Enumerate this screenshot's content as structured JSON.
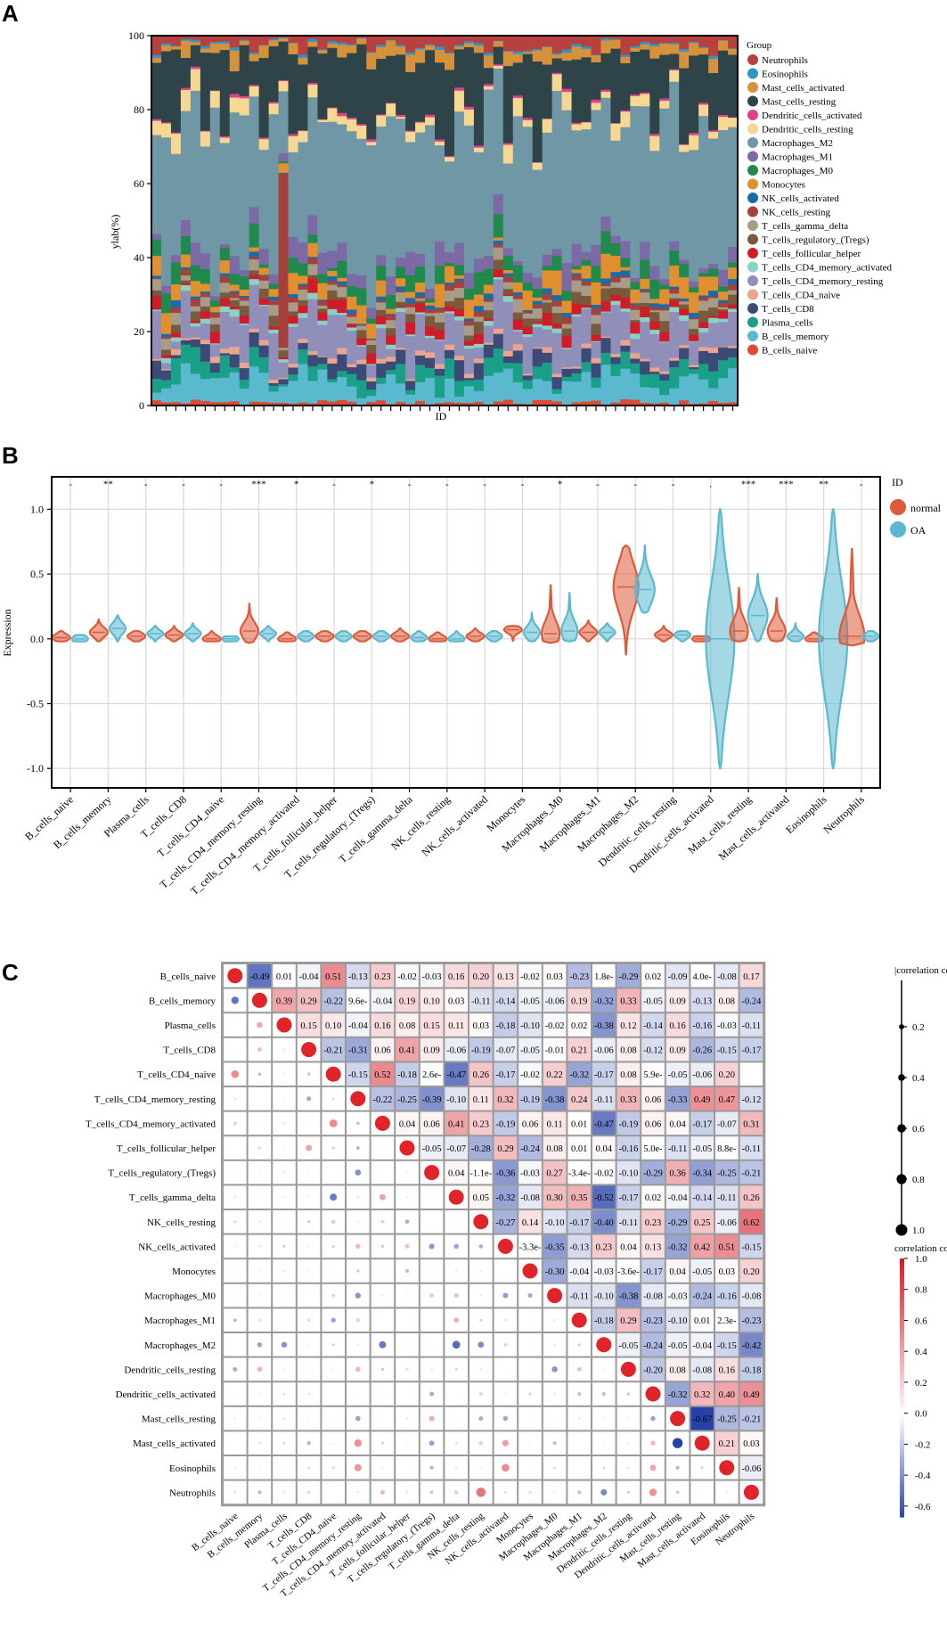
{
  "panel_labels": [
    "A",
    "B",
    "C"
  ],
  "colors": {
    "Neutrophils": "#b8403e",
    "Eosinophils": "#2a97c9",
    "Mast_cells_activated": "#d5923a",
    "Mast_cells_resting": "#2f4448",
    "Dendritic_cells_activated": "#e0408a",
    "Dendritic_cells_resting": "#f6d892",
    "Macrophages_M2": "#6f97a6",
    "Macrophages_M1": "#7c6aa6",
    "Macrophages_M0": "#1f8a4c",
    "Monocytes": "#e0902e",
    "NK_cells_activated": "#1c6aa8",
    "NK_cells_resting": "#a6403a",
    "T_cells_gamma_delta": "#a89b88",
    "T_cells_regulatory_(Tregs)": "#7a5a3c",
    "T_cells_follicular_helper": "#d01c28",
    "T_cells_CD4_memory_activated": "#88d2c8",
    "T_cells_CD4_memory_resting": "#8f8fba",
    "T_cells_CD4_naive": "#eda48c",
    "T_cells_CD8": "#3c4a78",
    "Plasma_cells": "#1aa088",
    "B_cells_memory": "#5ab8cf",
    "B_cells_naive": "#de4a32",
    "normal": "#dd5a3a",
    "OA": "#5ab8d0"
  },
  "chart_data": [
    {
      "type": "bar",
      "subtype": "stacked-percent",
      "title": "",
      "xlabel": "ID",
      "ylabel": "ylab(%)",
      "ylim": [
        0,
        100
      ],
      "yticks": [
        "0",
        "20",
        "40",
        "60",
        "80",
        "100"
      ],
      "legend_title": "Group",
      "legend": [
        "Neutrophils",
        "Eosinophils",
        "Mast_cells_activated",
        "Mast_cells_resting",
        "Dendritic_cells_activated",
        "Dendritic_cells_resting",
        "Macrophages_M2",
        "Macrophages_M1",
        "Macrophages_M0",
        "Monocytes",
        "NK_cells_activated",
        "NK_cells_resting",
        "T_cells_gamma_delta",
        "T_cells_regulatory_(Tregs)",
        "T_cells_follicular_helper",
        "T_cells_CD4_memory_activated",
        "T_cells_CD4_memory_resting",
        "T_cells_CD4_naive",
        "T_cells_CD8",
        "Plasma_cells",
        "B_cells_memory",
        "B_cells_naive"
      ],
      "n_samples": 60,
      "typical_composition_percent": {
        "B_cells_naive": 1,
        "B_cells_memory": 6,
        "Plasma_cells": 4,
        "T_cells_CD8": 3,
        "T_cells_CD4_naive": 1,
        "T_cells_CD4_memory_resting": 8,
        "T_cells_CD4_memory_activated": 1,
        "T_cells_follicular_helper": 2,
        "T_cells_regulatory_(Tregs)": 2,
        "T_cells_gamma_delta": 2,
        "NK_cells_resting": 1,
        "NK_cells_activated": 1,
        "Monocytes": 4,
        "Macrophages_M0": 4,
        "Macrophages_M1": 4,
        "Macrophages_M2": 40,
        "Dendritic_cells_resting": 3,
        "Dendritic_cells_activated": 0.5,
        "Mast_cells_resting": 15,
        "Mast_cells_activated": 3,
        "Eosinophils": 0.5,
        "Neutrophils": 3
      }
    },
    {
      "type": "violin",
      "title": "",
      "xlabel": "",
      "ylabel": "Expression",
      "ylim": [
        -1.15,
        1.25
      ],
      "yticks": [
        "-1.0",
        "-0.5",
        "0.0",
        "0.5",
        "1.0"
      ],
      "legend_title": "ID",
      "legend": [
        "normal",
        "OA"
      ],
      "categories": [
        "B_cells_naive",
        "B_cells_memory",
        "Plasma_cells",
        "T_cells_CD8",
        "T_cells_CD4_naive",
        "T_cells_CD4_memory_resting",
        "T_cells_CD4_memory_activated",
        "T_cells_follicular_helper",
        "T_cells_regulatory_(Tregs)",
        "T_cells_gamma_delta",
        "NK_cells_resting",
        "NK_cells_activated",
        "Monocytes",
        "Macrophages_M0",
        "Macrophages_M1",
        "Macrophages_M2",
        "Dendritic_cells_resting",
        "Dendritic_cells_activated",
        "Mast_cells_resting",
        "Mast_cells_activated",
        "Eosinophils",
        "Neutrophils"
      ],
      "significance": [
        "-",
        "**",
        "-",
        "-",
        "-",
        "***",
        "*",
        "-",
        "*",
        "-",
        "-",
        "-",
        "-",
        "*",
        "-",
        "-",
        "-",
        ".",
        "***",
        "***",
        "**",
        "-"
      ],
      "series": [
        {
          "name": "normal",
          "median": [
            0.01,
            0.05,
            0.02,
            0.03,
            0.0,
            0.06,
            0.0,
            0.02,
            0.02,
            0.02,
            0.0,
            0.02,
            0.07,
            0.04,
            0.05,
            0.4,
            0.03,
            0.0,
            0.06,
            0.06,
            0.0,
            0.02
          ],
          "min": [
            -0.02,
            -0.02,
            -0.02,
            -0.02,
            -0.02,
            -0.03,
            -0.02,
            -0.02,
            -0.02,
            -0.02,
            -0.02,
            -0.02,
            -0.02,
            -0.03,
            -0.02,
            -0.12,
            -0.02,
            -0.02,
            -0.02,
            -0.02,
            -0.02,
            -0.05
          ],
          "max": [
            0.06,
            0.15,
            0.06,
            0.1,
            0.06,
            0.27,
            0.05,
            0.06,
            0.06,
            0.08,
            0.05,
            0.08,
            0.1,
            0.42,
            0.14,
            0.72,
            0.1,
            0.02,
            0.4,
            0.32,
            0.05,
            0.7
          ]
        },
        {
          "name": "OA",
          "median": [
            0.0,
            0.08,
            0.04,
            0.04,
            0.0,
            0.04,
            0.02,
            0.02,
            0.02,
            0.01,
            0.0,
            0.02,
            0.05,
            0.06,
            0.05,
            0.38,
            0.03,
            0.0,
            0.18,
            0.02,
            0.0,
            0.02
          ],
          "min": [
            -0.02,
            -0.02,
            -0.02,
            -0.02,
            -0.02,
            -0.02,
            -0.02,
            -0.02,
            -0.02,
            -0.02,
            -0.02,
            -0.02,
            -0.02,
            -0.02,
            -0.02,
            0.2,
            -0.02,
            -1.0,
            -0.02,
            -0.02,
            -1.0,
            -0.02
          ],
          "max": [
            0.03,
            0.18,
            0.1,
            0.12,
            0.02,
            0.1,
            0.06,
            0.06,
            0.06,
            0.06,
            0.06,
            0.06,
            0.2,
            0.36,
            0.12,
            0.72,
            0.06,
            1.0,
            0.5,
            0.12,
            1.0,
            0.06
          ]
        }
      ]
    },
    {
      "type": "heatmap",
      "subtype": "correlation-matrix",
      "labels": [
        "B_cells_naive",
        "B_cells_memory",
        "Plasma_cells",
        "T_cells_CD8",
        "T_cells_CD4_naive",
        "T_cells_CD4_memory_resting",
        "T_cells_CD4_memory_activated",
        "T_cells_follicular_helper",
        "T_cells_regulatory_(Tregs)",
        "T_cells_gamma_delta",
        "NK_cells_resting",
        "NK_cells_activated",
        "Monocytes",
        "Macrophages_M0",
        "Macrophages_M1",
        "Macrophages_M2",
        "Dendritic_cells_resting",
        "Dendritic_cells_activated",
        "Mast_cells_resting",
        "Mast_cells_activated",
        "Eosinophils",
        "Neutrophils"
      ],
      "upper_rows": [
        [
          "-0.49",
          "0.01",
          "-0.04",
          "0.51",
          "-0.13",
          "0.23",
          "-0.02",
          "-0.03",
          "0.16",
          "0.20",
          "0.13",
          "-0.02",
          "0.03",
          "-0.23",
          "1.8e-",
          "-0.29",
          "0.02",
          "-0.09",
          "4.0e-",
          "-0.08",
          "0.17"
        ],
        [
          "0.39",
          "0.29",
          "-0.22",
          "9.6e-",
          "-0.04",
          "0.19",
          "0.10",
          "0.03",
          "-0.11",
          "-0.14",
          "-0.05",
          "-0.06",
          "0.19",
          "-0.32",
          "0.33",
          "-0.05",
          "0.09",
          "-0.13",
          "0.08",
          "-0.24"
        ],
        [
          "0.15",
          "0.10",
          "-0.04",
          "0.16",
          "0.08",
          "0.15",
          "0.11",
          "0.03",
          "-0.18",
          "-0.10",
          "-0.02",
          "0.02",
          "-0.38",
          "0.12",
          "-0.14",
          "0.16",
          "-0.16",
          "-0.03",
          "-0.11"
        ],
        [
          "-0.21",
          "-0.31",
          "0.06",
          "0.41",
          "0.09",
          "-0.06",
          "-0.19",
          "-0.07",
          "-0.05",
          "-0.01",
          "0.21",
          "-0.06",
          "0.08",
          "-0.12",
          "0.09",
          "-0.26",
          "-0.15",
          "-0.17"
        ],
        [
          "-0.15",
          "0.52",
          "-0.18",
          "2.6e-",
          "-0.47",
          "0.26",
          "-0.17",
          "-0.02",
          "0.22",
          "-0.32",
          "-0.17",
          "0.08",
          "5.9e-",
          "-0.05",
          "-0.06",
          "0.20"
        ],
        [
          "-0.22",
          "-0.25",
          "-0.39",
          "-0.10",
          "0.11",
          "0.32",
          "-0.19",
          "-0.38",
          "0.24",
          "-0.11",
          "0.33",
          "0.06",
          "-0.33",
          "0.49",
          "0.47",
          "-0.12"
        ],
        [
          "0.04",
          "0.06",
          "0.41",
          "0.23",
          "-0.19",
          "0.06",
          "0.11",
          "0.01",
          "-0.47",
          "-0.19",
          "0.06",
          "0.04",
          "-0.17",
          "-0.07",
          "0.31"
        ],
        [
          "-0.05",
          "-0.07",
          "-0.28",
          "0.29",
          "-0.24",
          "0.08",
          "0.01",
          "0.04",
          "-0.16",
          "5.0e-",
          "-0.11",
          "-0.05",
          "8.8e-",
          "-0.11"
        ],
        [
          "0.04",
          "-1.1e-",
          "-0.36",
          "-0.03",
          "0.27",
          "-3.4e-",
          "-0.02",
          "-0.10",
          "-0.29",
          "0.36",
          "-0.34",
          "-0.25",
          "-0.21"
        ],
        [
          "0.05",
          "-0.32",
          "-0.08",
          "0.30",
          "0.35",
          "-0.52",
          "-0.17",
          "0.02",
          "-0.04",
          "-0.14",
          "-0.11",
          "0.26"
        ],
        [
          "-0.27",
          "0.14",
          "-0.10",
          "-0.17",
          "-0.40",
          "-0.11",
          "0.23",
          "-0.29",
          "0.25",
          "-0.06",
          "0.62"
        ],
        [
          "-3.3e-",
          "-0.35",
          "-0.13",
          "0.23",
          "0.04",
          "0.13",
          "-0.32",
          "0.42",
          "0.51",
          "-0.15"
        ],
        [
          "-0.30",
          "-0.04",
          "-0.03",
          "-3.6e-",
          "-0.17",
          "0.04",
          "-0.05",
          "0.03",
          "0.20"
        ],
        [
          "-0.11",
          "-0.10",
          "-0.38",
          "-0.08",
          "-0.03",
          "-0.24",
          "-0.16",
          "-0.08"
        ],
        [
          "-0.18",
          "0.29",
          "-0.23",
          "-0.10",
          "0.01",
          "2.3e-",
          "-0.23"
        ],
        [
          "-0.05",
          "-0.24",
          "-0.05",
          "-0.04",
          "-0.15",
          "-0.42"
        ],
        [
          "-0.20",
          "0.08",
          "-0.08",
          "0.16",
          "-0.18"
        ],
        [
          "-0.32",
          "0.32",
          "0.40",
          "0.49"
        ],
        [
          "-0.67",
          "-0.25",
          "-0.21"
        ],
        [
          "0.21",
          "0.03"
        ],
        [
          "-0.06"
        ]
      ],
      "size_legend_title": "|correlation coefficient|",
      "size_legend_ticks": [
        "0.2",
        "0.4",
        "0.6",
        "0.8",
        "1.0"
      ],
      "color_legend_title": "correlation coefficient",
      "color_legend_ticks": [
        "1.0",
        "0.8",
        "0.6",
        "0.4",
        "0.2",
        "0.0",
        "-0.2",
        "-0.4",
        "-0.6"
      ],
      "color_range": [
        -0.67,
        1.0
      ]
    }
  ]
}
